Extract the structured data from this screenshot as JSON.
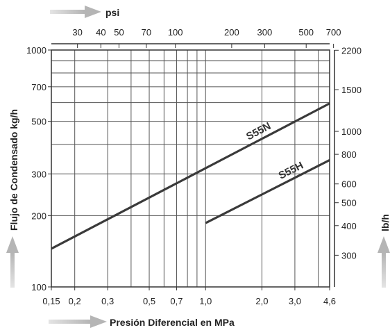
{
  "chart_data": {
    "type": "line",
    "title": "",
    "xlabel": "Presión Diferencial en MPa",
    "ylabel": "Flujo de Condensado kg/h",
    "top_axis_label": "psi",
    "right_axis_label": "lb/h",
    "x_scale": "log",
    "y_scale": "log",
    "xlim": [
      0.15,
      4.6
    ],
    "ylim": [
      100,
      1000
    ],
    "grid": true,
    "x_ticks": [
      {
        "value": 0.15,
        "label": "0,15"
      },
      {
        "value": 0.2,
        "label": "0,2"
      },
      {
        "value": 0.3,
        "label": "0,3"
      },
      {
        "value": 0.5,
        "label": "0,5"
      },
      {
        "value": 0.7,
        "label": "0,7"
      },
      {
        "value": 1.0,
        "label": "1,0"
      },
      {
        "value": 2.0,
        "label": "2,0"
      },
      {
        "value": 3.0,
        "label": "3,0"
      },
      {
        "value": 4.6,
        "label": "4,6"
      }
    ],
    "x_minor_grid": [
      0.4,
      0.6,
      0.8,
      0.9,
      4.0
    ],
    "y_ticks": [
      {
        "value": 100,
        "label": "100"
      },
      {
        "value": 200,
        "label": "200"
      },
      {
        "value": 300,
        "label": "300"
      },
      {
        "value": 500,
        "label": "500"
      },
      {
        "value": 700,
        "label": "700"
      },
      {
        "value": 1000,
        "label": "1000"
      }
    ],
    "y_minor_grid": [
      400,
      600,
      800,
      900
    ],
    "top_ticks": [
      {
        "value": 30,
        "label": "30"
      },
      {
        "value": 40,
        "label": "40"
      },
      {
        "value": 50,
        "label": "50"
      },
      {
        "value": 70,
        "label": "70"
      },
      {
        "value": 100,
        "label": "100"
      },
      {
        "value": 200,
        "label": "200"
      },
      {
        "value": 300,
        "label": "300"
      },
      {
        "value": 500,
        "label": "500"
      },
      {
        "value": 700,
        "label": "700"
      }
    ],
    "right_ticks": [
      {
        "value": 2200,
        "label": "2200"
      },
      {
        "value": 1500,
        "label": "1500"
      },
      {
        "value": 1000,
        "label": "1000"
      },
      {
        "value": 800,
        "label": "800"
      },
      {
        "value": 600,
        "label": "600"
      },
      {
        "value": 500,
        "label": "500"
      },
      {
        "value": 400,
        "label": "400"
      },
      {
        "value": 300,
        "label": "300"
      }
    ],
    "series": [
      {
        "name": "S55N",
        "x": [
          0.15,
          4.6
        ],
        "y": [
          145,
          595
        ],
        "color": "#3a3a3a"
      },
      {
        "name": "S55H",
        "x": [
          1.0,
          4.6
        ],
        "y": [
          186,
          343
        ],
        "color": "#3a3a3a"
      }
    ]
  }
}
